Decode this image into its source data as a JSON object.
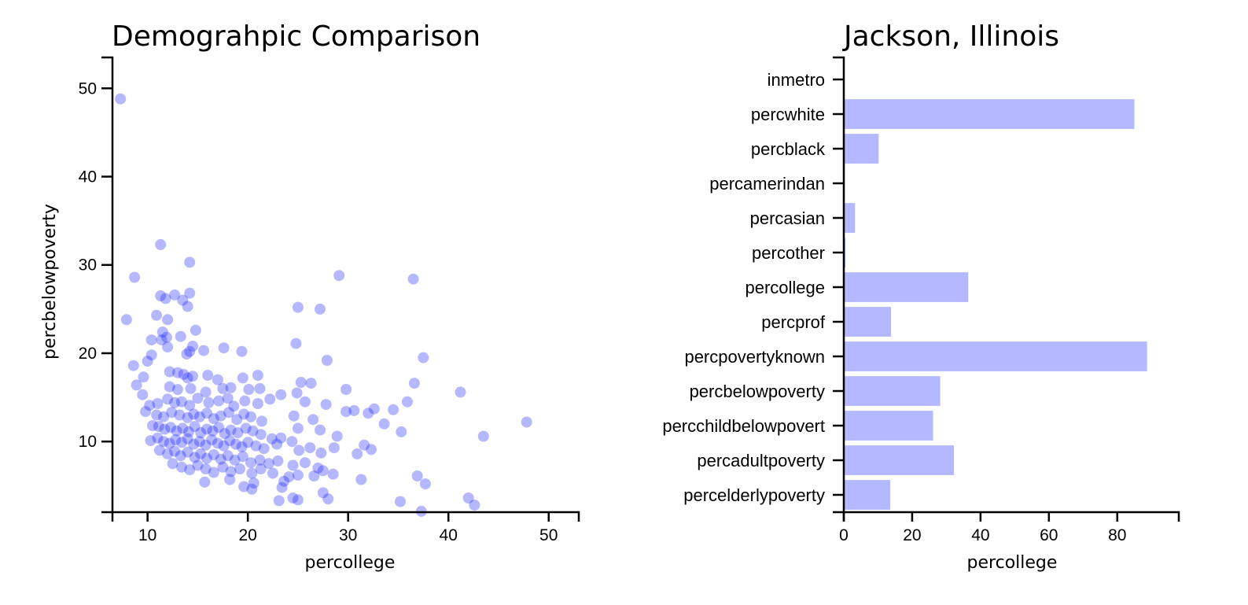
{
  "colors": {
    "mark": "#0a14ff",
    "bar": "#b3b8ff",
    "axis": "#000000"
  },
  "chart_data": [
    {
      "type": "scatter",
      "title": "Demograhpic Comparison",
      "xlabel": "percollege",
      "ylabel": "percbelowpoverty",
      "xlim": [
        6.5,
        53
      ],
      "ylim": [
        2,
        53.5
      ],
      "xticks": [
        10,
        20,
        30,
        40,
        50
      ],
      "yticks": [
        10,
        20,
        30,
        40,
        50
      ],
      "points": [
        [
          7.3,
          48.8
        ],
        [
          11.3,
          32.3
        ],
        [
          14.2,
          30.3
        ],
        [
          8.7,
          28.6
        ],
        [
          29.1,
          28.8
        ],
        [
          36.5,
          28.4
        ],
        [
          11.3,
          26.5
        ],
        [
          12.7,
          26.6
        ],
        [
          14.2,
          26.8
        ],
        [
          13.5,
          26.0
        ],
        [
          11.8,
          26.2
        ],
        [
          14.0,
          25.3
        ],
        [
          25.0,
          25.2
        ],
        [
          27.2,
          25.0
        ],
        [
          10.9,
          24.3
        ],
        [
          12.0,
          23.8
        ],
        [
          7.9,
          23.8
        ],
        [
          11.5,
          22.4
        ],
        [
          14.8,
          22.6
        ],
        [
          13.3,
          21.9
        ],
        [
          11.4,
          21.5
        ],
        [
          10.4,
          21.5
        ],
        [
          11.9,
          21.8
        ],
        [
          12.0,
          20.7
        ],
        [
          14.5,
          20.8
        ],
        [
          14.2,
          20.2
        ],
        [
          13.9,
          19.9
        ],
        [
          15.6,
          20.3
        ],
        [
          17.6,
          20.6
        ],
        [
          19.4,
          20.2
        ],
        [
          24.8,
          21.1
        ],
        [
          10.4,
          19.8
        ],
        [
          10.0,
          19.1
        ],
        [
          27.9,
          19.2
        ],
        [
          37.5,
          19.5
        ],
        [
          8.6,
          18.6
        ],
        [
          9.6,
          17.3
        ],
        [
          12.2,
          17.9
        ],
        [
          13.0,
          17.8
        ],
        [
          13.6,
          17.6
        ],
        [
          14.0,
          17.2
        ],
        [
          14.5,
          17.4
        ],
        [
          16.0,
          17.5
        ],
        [
          17.0,
          17.0
        ],
        [
          19.5,
          17.2
        ],
        [
          21.0,
          17.5
        ],
        [
          25.3,
          16.7
        ],
        [
          26.3,
          16.6
        ],
        [
          36.6,
          16.6
        ],
        [
          8.9,
          16.4
        ],
        [
          12.2,
          16.2
        ],
        [
          13.0,
          15.9
        ],
        [
          14.3,
          16.0
        ],
        [
          15.8,
          15.6
        ],
        [
          17.5,
          16.0
        ],
        [
          18.3,
          16.1
        ],
        [
          20.1,
          15.9
        ],
        [
          21.2,
          16.0
        ],
        [
          23.3,
          15.3
        ],
        [
          24.9,
          15.5
        ],
        [
          29.8,
          15.9
        ],
        [
          41.2,
          15.6
        ],
        [
          9.5,
          15.3
        ],
        [
          10.2,
          14.1
        ],
        [
          11.0,
          14.3
        ],
        [
          12.0,
          14.8
        ],
        [
          12.7,
          14.4
        ],
        [
          13.4,
          14.5
        ],
        [
          14.2,
          14.1
        ],
        [
          15.0,
          14.9
        ],
        [
          16.1,
          14.4
        ],
        [
          17.1,
          14.6
        ],
        [
          18.0,
          14.9
        ],
        [
          18.6,
          14.0
        ],
        [
          19.7,
          14.6
        ],
        [
          21.0,
          14.3
        ],
        [
          22.2,
          14.8
        ],
        [
          25.7,
          14.5
        ],
        [
          27.8,
          14.2
        ],
        [
          32.0,
          13.2
        ],
        [
          35.9,
          14.5
        ],
        [
          9.8,
          13.4
        ],
        [
          10.9,
          13.0
        ],
        [
          11.6,
          12.8
        ],
        [
          12.4,
          13.3
        ],
        [
          13.2,
          13.0
        ],
        [
          14.0,
          12.7
        ],
        [
          14.6,
          13.1
        ],
        [
          15.2,
          12.8
        ],
        [
          15.9,
          13.2
        ],
        [
          16.6,
          12.6
        ],
        [
          17.3,
          12.9
        ],
        [
          18.1,
          13.3
        ],
        [
          18.9,
          12.5
        ],
        [
          19.6,
          13.1
        ],
        [
          20.3,
          12.8
        ],
        [
          21.4,
          12.3
        ],
        [
          24.6,
          12.9
        ],
        [
          26.5,
          12.5
        ],
        [
          29.8,
          13.4
        ],
        [
          30.6,
          13.5
        ],
        [
          32.6,
          13.7
        ],
        [
          33.6,
          12.0
        ],
        [
          34.5,
          13.6
        ],
        [
          47.8,
          12.2
        ],
        [
          10.5,
          11.8
        ],
        [
          11.1,
          11.7
        ],
        [
          11.7,
          11.4
        ],
        [
          12.3,
          11.6
        ],
        [
          12.9,
          11.2
        ],
        [
          13.5,
          11.5
        ],
        [
          14.1,
          11.1
        ],
        [
          14.7,
          11.7
        ],
        [
          15.3,
          11.0
        ],
        [
          15.9,
          11.4
        ],
        [
          16.5,
          11.2
        ],
        [
          17.1,
          11.6
        ],
        [
          17.7,
          10.9
        ],
        [
          18.3,
          11.3
        ],
        [
          19.0,
          11.0
        ],
        [
          19.8,
          11.5
        ],
        [
          20.5,
          11.2
        ],
        [
          21.3,
          10.8
        ],
        [
          22.4,
          10.3
        ],
        [
          23.3,
          10.4
        ],
        [
          25.0,
          11.5
        ],
        [
          27.2,
          11.3
        ],
        [
          28.9,
          10.6
        ],
        [
          31.6,
          9.6
        ],
        [
          32.3,
          9.1
        ],
        [
          35.3,
          11.1
        ],
        [
          43.5,
          10.6
        ],
        [
          10.3,
          10.1
        ],
        [
          11.0,
          10.4
        ],
        [
          11.6,
          10.0
        ],
        [
          12.2,
          9.8
        ],
        [
          12.8,
          10.2
        ],
        [
          13.4,
          9.9
        ],
        [
          14.0,
          10.3
        ],
        [
          14.6,
          9.7
        ],
        [
          15.2,
          10.0
        ],
        [
          15.8,
          9.6
        ],
        [
          16.4,
          10.2
        ],
        [
          17.0,
          9.8
        ],
        [
          17.6,
          9.5
        ],
        [
          18.2,
          10.1
        ],
        [
          18.8,
          9.7
        ],
        [
          19.4,
          9.4
        ],
        [
          20.0,
          9.9
        ],
        [
          20.8,
          9.5
        ],
        [
          21.6,
          9.2
        ],
        [
          22.9,
          9.7
        ],
        [
          24.4,
          10.0
        ],
        [
          25.1,
          9.0
        ],
        [
          26.2,
          9.3
        ],
        [
          27.3,
          8.7
        ],
        [
          28.6,
          9.3
        ],
        [
          30.9,
          8.6
        ],
        [
          11.2,
          9.0
        ],
        [
          12.0,
          8.6
        ],
        [
          12.7,
          8.9
        ],
        [
          13.3,
          8.4
        ],
        [
          14.0,
          8.8
        ],
        [
          14.7,
          8.2
        ],
        [
          15.3,
          8.6
        ],
        [
          15.9,
          8.1
        ],
        [
          16.6,
          8.5
        ],
        [
          17.3,
          8.0
        ],
        [
          18.0,
          8.4
        ],
        [
          18.7,
          7.9
        ],
        [
          19.5,
          8.3
        ],
        [
          20.3,
          7.6
        ],
        [
          21.2,
          7.9
        ],
        [
          22.1,
          7.5
        ],
        [
          23.0,
          7.8
        ],
        [
          24.5,
          7.3
        ],
        [
          25.7,
          7.6
        ],
        [
          27.0,
          7.0
        ],
        [
          12.5,
          7.5
        ],
        [
          13.4,
          7.1
        ],
        [
          14.2,
          6.8
        ],
        [
          15.0,
          7.3
        ],
        [
          15.8,
          6.9
        ],
        [
          16.6,
          6.5
        ],
        [
          17.5,
          7.1
        ],
        [
          18.3,
          6.6
        ],
        [
          19.2,
          6.9
        ],
        [
          20.4,
          6.4
        ],
        [
          21.3,
          6.9
        ],
        [
          22.5,
          6.4
        ],
        [
          24.1,
          6.0
        ],
        [
          25.0,
          6.2
        ],
        [
          26.6,
          6.1
        ],
        [
          27.5,
          6.7
        ],
        [
          28.5,
          6.3
        ],
        [
          31.3,
          5.7
        ],
        [
          36.9,
          6.1
        ],
        [
          15.7,
          5.4
        ],
        [
          18.2,
          5.7
        ],
        [
          19.6,
          4.9
        ],
        [
          20.6,
          5.3
        ],
        [
          20.4,
          4.6
        ],
        [
          23.6,
          5.5
        ],
        [
          23.4,
          4.8
        ],
        [
          24.5,
          3.6
        ],
        [
          25.0,
          3.4
        ],
        [
          23.1,
          3.3
        ],
        [
          27.5,
          4.2
        ],
        [
          28.0,
          3.5
        ],
        [
          35.2,
          3.2
        ],
        [
          37.7,
          5.2
        ],
        [
          42.0,
          3.6
        ],
        [
          42.6,
          2.8
        ],
        [
          37.3,
          2.1
        ]
      ]
    },
    {
      "type": "bar",
      "orientation": "horizontal",
      "title": "Jackson, Illinois",
      "xlabel": "percollege",
      "xlim": [
        0,
        98
      ],
      "xticks": [
        0,
        20,
        40,
        60,
        80
      ],
      "categories": [
        "inmetro",
        "percwhite",
        "percblack",
        "percamerindan",
        "percasian",
        "percother",
        "percollege",
        "percprof",
        "percpovertyknown",
        "percbelowpoverty",
        "percchildbelowpovert",
        "percadultpoverty",
        "percelderlypoverty"
      ],
      "values": [
        0,
        85.0,
        10.2,
        0.3,
        3.3,
        0.5,
        36.4,
        13.8,
        88.7,
        28.2,
        26.1,
        32.2,
        13.6
      ]
    }
  ]
}
